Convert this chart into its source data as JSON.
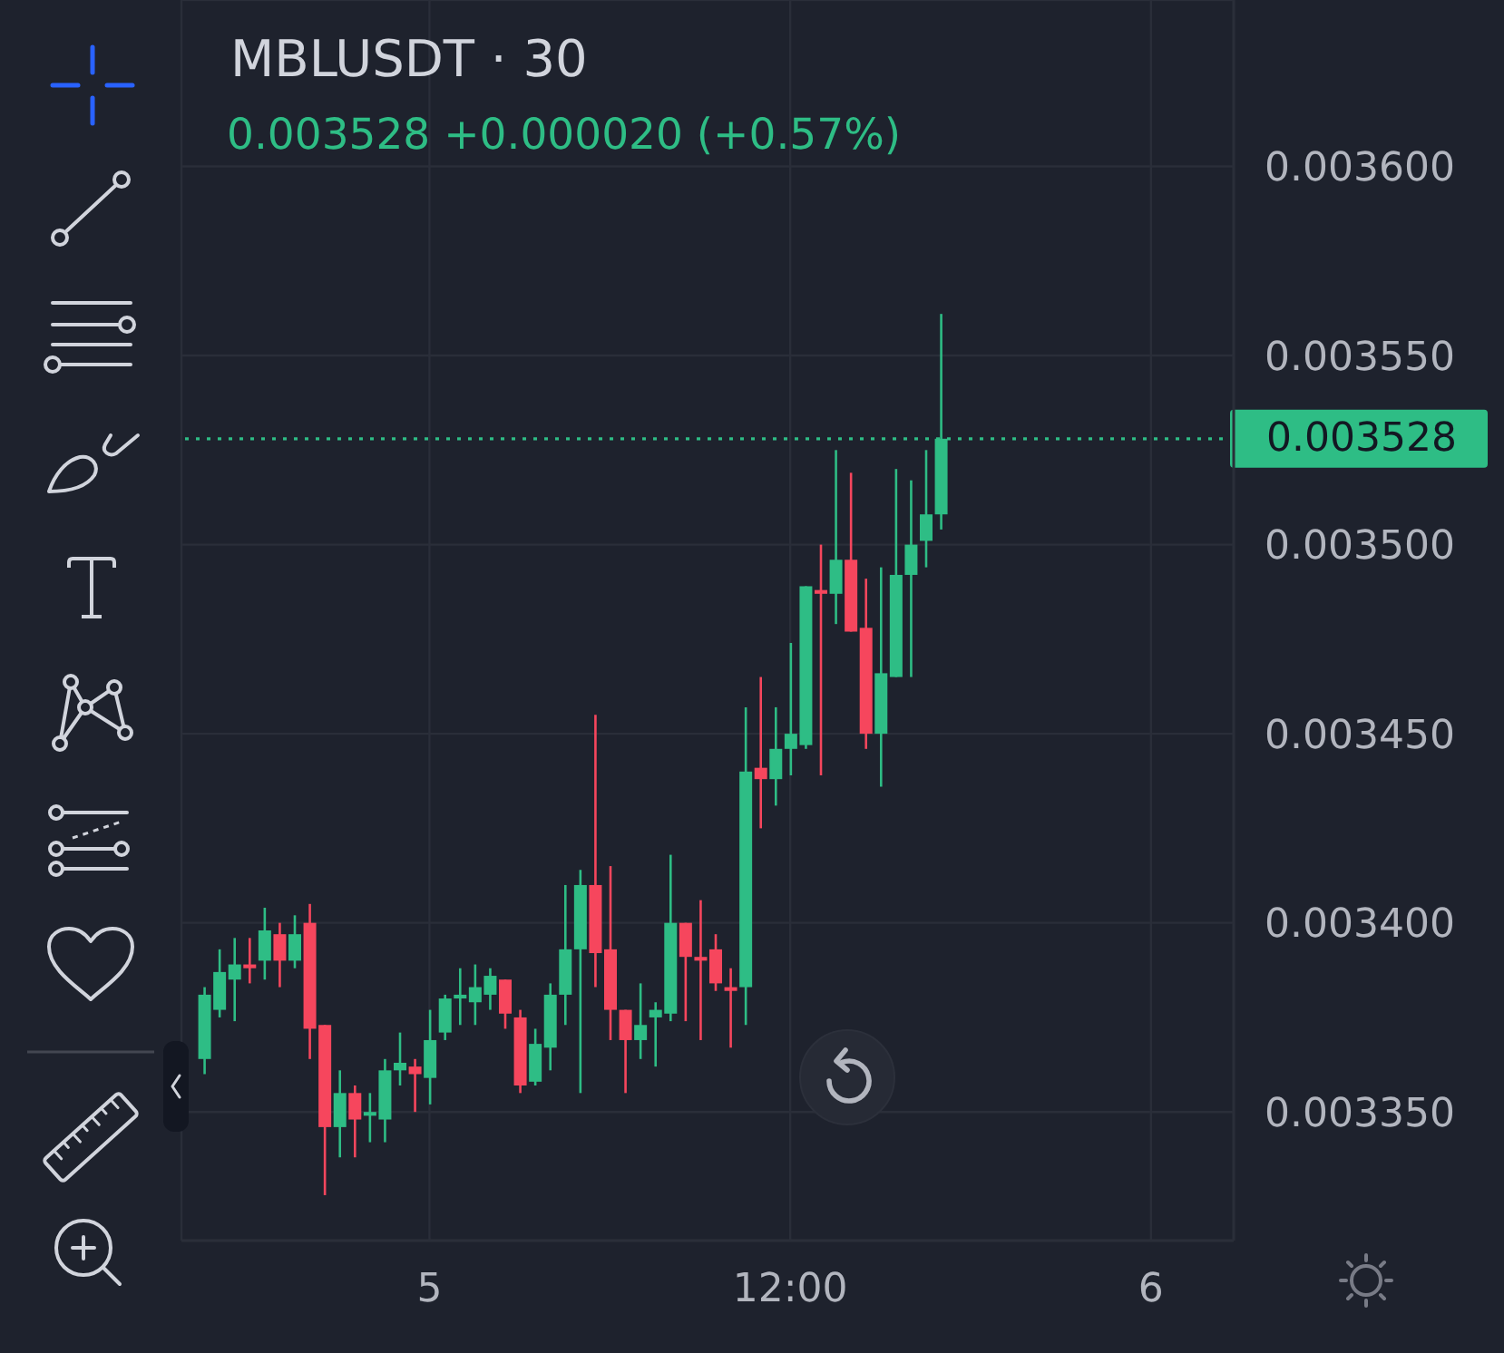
{
  "chart_data": {
    "type": "candlestick",
    "title": "MBLUSDT · 30",
    "subtitle": "0.003528 +0.000020 (+0.57%)",
    "categories": [
      null,
      null,
      null,
      null,
      null,
      null,
      null,
      null,
      null,
      null,
      null,
      null,
      null,
      null,
      null,
      null,
      "5",
      null,
      null,
      null,
      null,
      null,
      null,
      null,
      null,
      null,
      null,
      null,
      null,
      null,
      null,
      null,
      null,
      null,
      null,
      null,
      null,
      null,
      null,
      null,
      "12:00",
      null,
      null,
      null,
      null,
      null,
      null,
      null,
      null,
      null,
      null,
      null,
      null,
      null,
      null,
      null,
      null,
      null,
      null,
      null,
      null,
      null,
      null,
      null,
      "6",
      null,
      null,
      null,
      null,
      null
    ],
    "ohlc": [
      null,
      [
        0.003364,
        0.003383,
        0.00336,
        0.003381
      ],
      [
        0.003377,
        0.003393,
        0.003375,
        0.003387
      ],
      [
        0.003385,
        0.003396,
        0.003374,
        0.003389
      ],
      [
        0.003389,
        0.003396,
        0.003384,
        0.003388
      ],
      [
        0.00339,
        0.003404,
        0.003385,
        0.003398
      ],
      [
        0.003397,
        0.0034,
        0.003383,
        0.00339
      ],
      [
        0.00339,
        0.003402,
        0.003388,
        0.003397
      ],
      [
        0.0034,
        0.003405,
        0.003364,
        0.003372
      ],
      [
        0.003373,
        0.003373,
        0.003328,
        0.003346
      ],
      [
        0.003346,
        0.003361,
        0.003338,
        0.003355
      ],
      [
        0.003355,
        0.003357,
        0.003338,
        0.003348
      ],
      [
        0.003349,
        0.003355,
        0.003342,
        0.00335
      ],
      [
        0.003348,
        0.003364,
        0.003342,
        0.003361
      ],
      [
        0.003361,
        0.003371,
        0.003357,
        0.003363
      ],
      [
        0.003362,
        0.003364,
        0.00335,
        0.00336
      ],
      [
        0.003359,
        0.003377,
        0.003352,
        0.003369
      ],
      [
        0.003371,
        0.003381,
        0.003369,
        0.00338
      ],
      [
        0.00338,
        0.003388,
        0.003373,
        0.003381
      ],
      [
        0.003379,
        0.003389,
        0.003373,
        0.003383
      ],
      [
        0.003381,
        0.003388,
        0.003377,
        0.003386
      ],
      [
        0.003385,
        0.003385,
        0.003372,
        0.003376
      ],
      [
        0.003375,
        0.003377,
        0.003355,
        0.003357
      ],
      [
        0.003358,
        0.003372,
        0.003357,
        0.003368
      ],
      [
        0.003367,
        0.003384,
        0.003361,
        0.003381
      ],
      [
        0.003381,
        0.00341,
        0.003373,
        0.003393
      ],
      [
        0.003393,
        0.003414,
        0.003355,
        0.00341
      ],
      [
        0.00341,
        0.003455,
        0.003383,
        0.003392
      ],
      [
        0.003393,
        0.003415,
        0.003369,
        0.003377
      ],
      [
        0.003377,
        0.003377,
        0.003355,
        0.003369
      ],
      [
        0.003369,
        0.003384,
        0.003364,
        0.003373
      ],
      [
        0.003375,
        0.003379,
        0.003362,
        0.003377
      ],
      [
        0.003376,
        0.003418,
        0.003374,
        0.0034
      ],
      [
        0.0034,
        0.0034,
        0.003374,
        0.003391
      ],
      [
        0.003391,
        0.003406,
        0.003369,
        0.00339
      ],
      [
        0.003393,
        0.003397,
        0.003382,
        0.003384
      ],
      [
        0.003383,
        0.003388,
        0.003367,
        0.003382
      ],
      [
        0.003383,
        0.003457,
        0.003373,
        0.00344
      ],
      [
        0.003441,
        0.003465,
        0.003425,
        0.003438
      ],
      [
        0.003438,
        0.003457,
        0.003431,
        0.003446
      ],
      [
        0.003446,
        0.003474,
        0.003439,
        0.00345
      ],
      [
        0.003447,
        0.003489,
        0.003446,
        0.003489
      ],
      [
        0.003488,
        0.0035,
        0.003439,
        0.003487
      ],
      [
        0.003487,
        0.003525,
        0.003479,
        0.003496
      ],
      [
        0.003496,
        0.003519,
        0.003477,
        0.003477
      ],
      [
        0.003478,
        0.003491,
        0.003446,
        0.00345
      ],
      [
        0.00345,
        0.003494,
        0.003436,
        0.003466
      ],
      [
        0.003465,
        0.00352,
        0.003465,
        0.003492
      ],
      [
        0.003492,
        0.003517,
        0.003465,
        0.0035
      ],
      [
        0.003501,
        0.003525,
        0.003494,
        0.003508
      ],
      [
        0.003508,
        0.003561,
        0.003504,
        0.003528
      ],
      null,
      null,
      null,
      null,
      null,
      null,
      null,
      null,
      null,
      null,
      null,
      null,
      null,
      null,
      null,
      null,
      null,
      null,
      null
    ],
    "colors": [
      null,
      "#2ebd85",
      "#2ebd85",
      "#2ebd85",
      "#f6465d",
      "#2ebd85",
      "#f6465d",
      "#2ebd85",
      "#f6465d",
      "#f6465d",
      "#2ebd85",
      "#f6465d",
      "#2ebd85",
      "#2ebd85",
      "#2ebd85",
      "#f6465d",
      "#2ebd85",
      "#2ebd85",
      "#2ebd85",
      "#2ebd85",
      "#2ebd85",
      "#f6465d",
      "#f6465d",
      "#2ebd85",
      "#2ebd85",
      "#2ebd85",
      "#2ebd85",
      "#f6465d",
      "#f6465d",
      "#f6465d",
      "#2ebd85",
      "#2ebd85",
      "#2ebd85",
      "#f6465d",
      "#f6465d",
      "#f6465d",
      "#f6465d",
      "#2ebd85",
      "#f6465d",
      "#2ebd85",
      "#2ebd85",
      "#2ebd85",
      "#f6465d",
      "#2ebd85",
      "#f6465d",
      "#f6465d",
      "#2ebd85",
      "#2ebd85",
      "#2ebd85",
      "#2ebd85",
      "#2ebd85",
      null,
      null,
      null,
      null,
      null,
      null,
      null,
      null,
      null,
      null,
      null,
      null,
      null,
      null,
      null,
      null,
      null,
      null,
      null
    ],
    "ylim": [
      0.003316,
      0.003644
    ],
    "yticks": [
      {
        "value": 0.00335,
        "label": "0.003350"
      },
      {
        "value": 0.0034,
        "label": "0.003400"
      },
      {
        "value": 0.00345,
        "label": "0.003450"
      },
      {
        "value": 0.0035,
        "label": "0.003500"
      },
      {
        "value": 0.00355,
        "label": "0.003550"
      },
      {
        "value": 0.0036,
        "label": "0.003600"
      }
    ],
    "grid": true,
    "ref_lines": [
      {
        "axis": "y",
        "value": 0.003528,
        "label": "0.003528",
        "color": "#2ebd85",
        "line_style": "dotted"
      }
    ]
  }
}
